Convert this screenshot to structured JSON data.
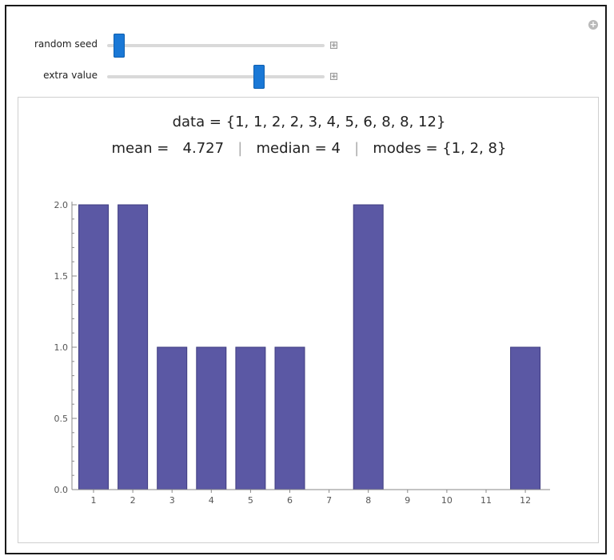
{
  "controls": [
    {
      "label": "random seed",
      "value_fraction": 0.03
    },
    {
      "label": "extra value",
      "value_fraction": 0.71
    }
  ],
  "corner_button_icon": "plus-circle-icon",
  "summary": {
    "data_line": "data = {1, 1, 2, 2, 3, 4, 5, 6, 8, 8, 12}",
    "mean_text": "mean =   4.727",
    "sep": "|",
    "median_text": "median = 4",
    "modes_text": "modes = {1, 2, 8}"
  },
  "colors": {
    "bar": "#5b58a4",
    "bar_edge": "#3f3d80",
    "slider": "#1a78d6"
  },
  "chart_data": {
    "type": "bar",
    "categories": [
      "1",
      "2",
      "3",
      "4",
      "5",
      "6",
      "7",
      "8",
      "9",
      "10",
      "11",
      "12"
    ],
    "values": [
      2,
      2,
      1,
      1,
      1,
      1,
      0,
      2,
      0,
      0,
      0,
      1
    ],
    "title": "",
    "xlabel": "",
    "ylabel": "",
    "ylim": [
      0,
      2
    ],
    "yticks": [
      "0.0",
      "0.5",
      "1.0",
      "1.5",
      "2.0"
    ],
    "grid": false
  }
}
